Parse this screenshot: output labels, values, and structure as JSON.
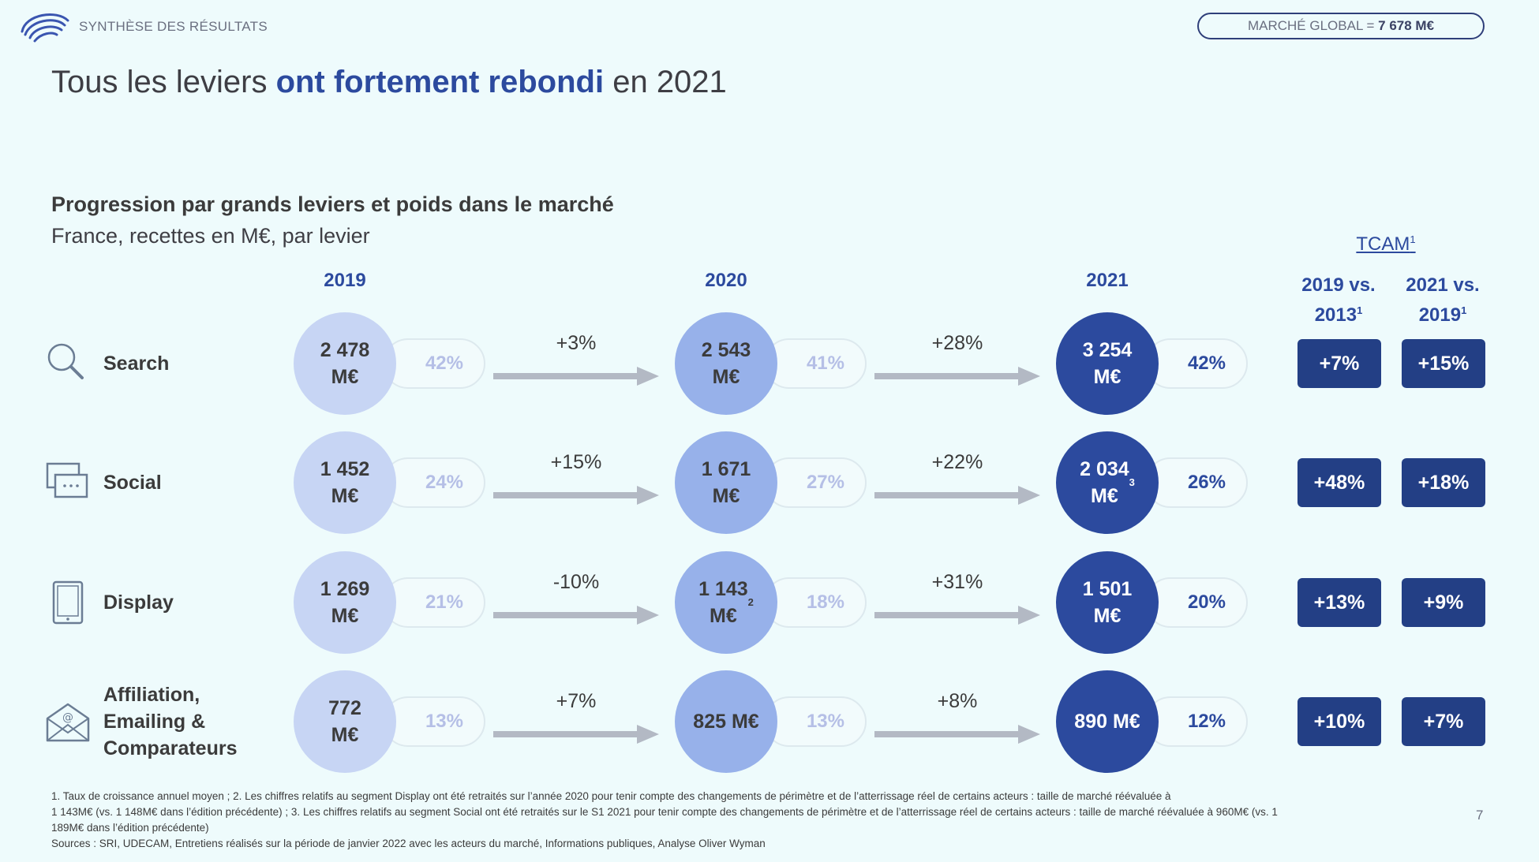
{
  "header": {
    "section_label": "SYNTHÈSE DES RÉSULTATS",
    "market_label": "MARCHÉ GLOBAL = ",
    "market_value": "7 678 M€"
  },
  "title": {
    "part1": "Tous les leviers ",
    "highlight": "ont fortement rebondi",
    "part2": " en 2021"
  },
  "subtitle": "Progression par grands leviers et poids dans le marché",
  "subsubtitle": "France, recettes en M€, par levier",
  "tcam": {
    "label": "TCAM",
    "label_sup": "1",
    "col1_line1": "2019 vs.",
    "col1_line2": "2013",
    "col1_sup": "1",
    "col2_line1": "2021 vs.",
    "col2_line2": "2019",
    "col2_sup": "1"
  },
  "colors": {
    "c2019": "#c7d5f4",
    "c2020": "#97b1ea",
    "c2021": "#2c4a9e",
    "tcam_box": "#233f85",
    "accent": "#2c4a9e"
  },
  "chart_data": {
    "type": "table",
    "title": "Progression par grands leviers et poids dans le marché",
    "unit": "M€",
    "years": [
      "2019",
      "2020",
      "2021"
    ],
    "rows": [
      {
        "lever": "Search",
        "icon": "search-icon",
        "values_text": [
          "2 478\nM€",
          "2 543\nM€",
          "3 254\nM€"
        ],
        "values_sup": [
          "",
          "",
          ""
        ],
        "values": [
          2478,
          2543,
          3254
        ],
        "shares": [
          "42%",
          "41%",
          "42%"
        ],
        "growth": [
          "+3%",
          "+28%"
        ],
        "tcam_2019_vs_2013": "+7%",
        "tcam_2021_vs_2019": "+15%"
      },
      {
        "lever": "Social",
        "icon": "chat-icon",
        "values_text": [
          "1 452\nM€",
          "1 671\nM€",
          "2 034\nM€"
        ],
        "values_sup": [
          "",
          "",
          "3"
        ],
        "values": [
          1452,
          1671,
          2034
        ],
        "shares": [
          "24%",
          "27%",
          "26%"
        ],
        "growth": [
          "+15%",
          "+22%"
        ],
        "tcam_2019_vs_2013": "+48%",
        "tcam_2021_vs_2019": "+18%"
      },
      {
        "lever": "Display",
        "icon": "tablet-icon",
        "values_text": [
          "1 269\nM€",
          "1 143\nM€",
          "1 501\nM€"
        ],
        "values_sup": [
          "",
          "2",
          ""
        ],
        "values": [
          1269,
          1143,
          1501
        ],
        "shares": [
          "21%",
          "18%",
          "20%"
        ],
        "growth": [
          "-10%",
          "+31%"
        ],
        "tcam_2019_vs_2013": "+13%",
        "tcam_2021_vs_2019": "+9%"
      },
      {
        "lever": "Affiliation,\nEmailing &\nComparateurs",
        "icon": "envelope-icon",
        "values_text": [
          "772\nM€",
          "825 M€",
          "890 M€"
        ],
        "values_sup": [
          "",
          "",
          ""
        ],
        "values": [
          772,
          825,
          890
        ],
        "shares": [
          "13%",
          "13%",
          "12%"
        ],
        "growth": [
          "+7%",
          "+8%"
        ],
        "tcam_2019_vs_2013": "+10%",
        "tcam_2021_vs_2019": "+7%"
      }
    ]
  },
  "footnotes": [
    "1. Taux de croissance annuel moyen ; 2. Les chiffres relatifs au segment Display ont été retraités sur l’année 2020 pour tenir compte des changements de périmètre et de l’atterrissage réel de certains acteurs : taille de marché réévaluée à",
    "1 143M€ (vs. 1 148M€ dans l’édition précédente) ; 3. Les chiffres relatifs au segment Social ont été retraités sur le S1 2021 pour tenir compte des changements de périmètre et de l’atterrissage réel de certains acteurs : taille de marché réévaluée à 960M€ (vs. 1",
    "189M€ dans l’édition précédente)",
    "Sources : SRI, UDECAM, Entretiens réalisés sur la période de janvier 2022 avec les acteurs du marché, Informations publiques, Analyse Oliver Wyman"
  ],
  "page_number": "7"
}
